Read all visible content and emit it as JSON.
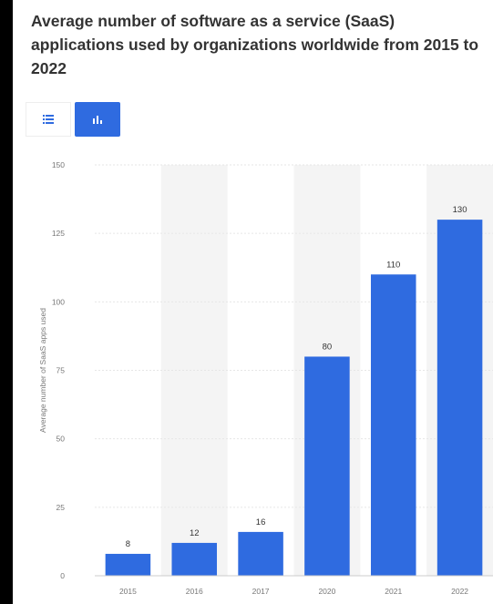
{
  "title": "Average number of software as a service (SaaS) applications used by organizations worldwide from 2015 to 2022",
  "toolbar": {
    "table_view_icon": "list-icon",
    "chart_view_icon": "bar-chart-icon",
    "accent_color": "#2f6be0"
  },
  "chart_data": {
    "type": "bar",
    "title": "Average number of software as a service (SaaS) applications used by organizations worldwide from 2015 to 2022",
    "xlabel": "",
    "ylabel": "Average number of SaaS apps used",
    "categories": [
      "2015",
      "2016",
      "2017",
      "2020",
      "2021",
      "2022"
    ],
    "values": [
      8,
      12,
      16,
      80,
      110,
      130
    ],
    "ylim": [
      0,
      150
    ],
    "yticks": [
      0,
      25,
      50,
      75,
      100,
      125,
      150
    ],
    "grid": true,
    "bar_color": "#2f6be0",
    "alt_band_color": "#f4f4f4"
  }
}
